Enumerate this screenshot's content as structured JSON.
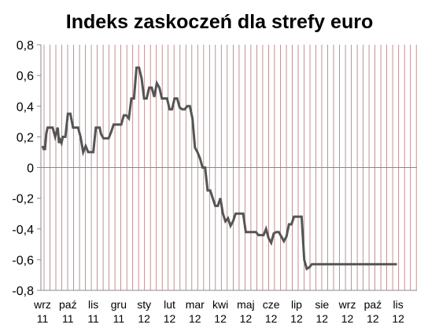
{
  "chart_data": {
    "type": "line",
    "title": "Indeks zaskoczeń dla strefy euro",
    "xlabel": "",
    "ylabel": "",
    "ylim": [
      -0.8,
      0.8
    ],
    "y_ticks": [
      "0,8",
      "0,6",
      "0,4",
      "0,2",
      "0",
      "-0,2",
      "-0,4",
      "-0,6",
      "-0,8"
    ],
    "x_ticks": [
      {
        "month": "wrz",
        "year": "11"
      },
      {
        "month": "paź",
        "year": "11"
      },
      {
        "month": "lis",
        "year": "11"
      },
      {
        "month": "gru",
        "year": "11"
      },
      {
        "month": "sty",
        "year": "12"
      },
      {
        "month": "lut",
        "year": "12"
      },
      {
        "month": "mar",
        "year": "12"
      },
      {
        "month": "kwi",
        "year": "12"
      },
      {
        "month": "maj",
        "year": "12"
      },
      {
        "month": "cze",
        "year": "12"
      },
      {
        "month": "lip",
        "year": "12"
      },
      {
        "month": "sie",
        "year": "12"
      },
      {
        "month": "wrz",
        "year": "12"
      },
      {
        "month": "paź",
        "year": "12"
      },
      {
        "month": "lis",
        "year": "12"
      }
    ],
    "grid": "vertical weekly lines",
    "colors": {
      "line": "#555555",
      "grid": "#b07878",
      "axis": "#888888"
    },
    "series": [
      {
        "x": [
          0.0,
          0.05,
          0.1,
          0.15,
          0.2,
          0.3,
          0.4,
          0.5,
          0.6,
          0.65,
          0.7,
          0.75,
          0.8,
          0.9,
          1.0,
          1.05,
          1.1,
          1.2,
          1.3,
          1.4,
          1.5,
          1.6,
          1.7,
          1.8,
          1.9,
          2.0,
          2.1,
          2.2,
          2.25,
          2.3,
          2.4,
          2.5,
          2.6,
          2.7,
          2.8,
          2.9,
          3.0,
          3.1,
          3.2,
          3.3,
          3.4,
          3.5,
          3.6,
          3.7,
          3.8,
          3.9,
          4.0,
          4.1,
          4.2,
          4.3,
          4.4,
          4.5,
          4.6,
          4.7,
          4.8,
          4.9,
          5.0,
          5.1,
          5.2,
          5.3,
          5.4,
          5.5,
          5.6,
          5.7,
          5.8,
          5.9,
          6.0,
          6.1,
          6.2,
          6.3,
          6.4,
          6.5,
          6.6,
          6.7,
          6.8,
          6.9,
          7.0,
          7.1,
          7.2,
          7.3,
          7.4,
          7.5,
          7.6,
          7.7,
          7.8,
          7.9,
          8.0,
          8.1,
          8.2,
          8.3,
          8.4,
          8.5,
          8.6,
          8.7,
          8.8,
          8.9,
          9.0,
          9.1,
          9.2,
          9.3,
          9.4,
          9.5,
          9.6,
          9.7,
          9.8,
          9.9,
          10.0,
          10.1,
          10.2,
          10.3,
          10.4,
          10.5,
          10.6,
          10.7,
          10.8,
          10.9,
          11.0,
          11.1,
          11.2,
          11.3,
          11.4,
          11.5,
          11.6,
          11.7,
          11.8,
          11.9,
          12.0,
          12.1,
          12.2,
          12.3,
          12.4,
          12.5,
          12.6,
          12.7,
          12.8,
          12.9,
          13.0,
          13.1,
          13.2,
          13.3,
          13.4,
          13.5,
          13.6,
          13.7,
          13.75,
          13.8,
          13.85,
          13.9,
          13.95
        ],
        "y": [
          0.14,
          0.12,
          0.12,
          0.22,
          0.26,
          0.26,
          0.26,
          0.2,
          0.26,
          0.16,
          0.18,
          0.16,
          0.2,
          0.2,
          0.35,
          0.35,
          0.35,
          0.26,
          0.26,
          0.26,
          0.2,
          0.1,
          0.14,
          0.1,
          0.1,
          0.1,
          0.26,
          0.26,
          0.26,
          0.22,
          0.19,
          0.19,
          0.19,
          0.23,
          0.28,
          0.28,
          0.28,
          0.28,
          0.34,
          0.34,
          0.32,
          0.45,
          0.45,
          0.65,
          0.65,
          0.58,
          0.45,
          0.45,
          0.52,
          0.52,
          0.46,
          0.55,
          0.52,
          0.45,
          0.45,
          0.45,
          0.38,
          0.38,
          0.45,
          0.45,
          0.39,
          0.38,
          0.38,
          0.4,
          0.4,
          0.32,
          0.13,
          0.1,
          0.06,
          0.0,
          0.0,
          -0.15,
          -0.15,
          -0.2,
          -0.25,
          -0.25,
          -0.2,
          -0.3,
          -0.35,
          -0.33,
          -0.38,
          -0.35,
          -0.3,
          -0.3,
          -0.3,
          -0.3,
          -0.42,
          -0.42,
          -0.42,
          -0.42,
          -0.42,
          -0.44,
          -0.44,
          -0.44,
          -0.4,
          -0.46,
          -0.49,
          -0.43,
          -0.42,
          -0.42,
          -0.45,
          -0.48,
          -0.45,
          -0.37,
          -0.37,
          -0.32,
          -0.32,
          -0.32,
          -0.32,
          -0.6,
          -0.66,
          -0.65,
          -0.63,
          -0.63,
          -0.63,
          -0.63,
          -0.63,
          -0.63,
          -0.63,
          -0.63,
          -0.63,
          -0.63,
          -0.63,
          -0.63,
          -0.63,
          -0.63,
          -0.63,
          -0.63,
          -0.63,
          -0.63,
          -0.63,
          -0.63,
          -0.63,
          -0.63,
          -0.63,
          -0.63,
          -0.63,
          -0.63,
          -0.63,
          -0.63,
          -0.63,
          -0.63,
          -0.63,
          -0.63,
          -0.63,
          -0.63,
          -0.63,
          -0.63,
          -0.63
        ]
      }
    ]
  }
}
